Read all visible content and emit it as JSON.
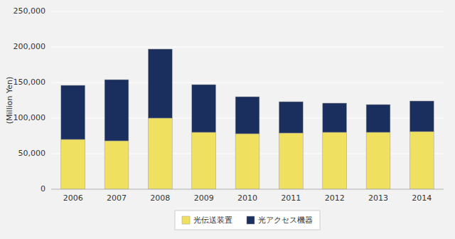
{
  "chart_data": {
    "type": "bar",
    "stacked": true,
    "categories": [
      "2006",
      "2007",
      "2008",
      "2009",
      "2010",
      "2011",
      "2012",
      "2013",
      "2014"
    ],
    "series": [
      {
        "name": "光伝送装置",
        "color": "#F0E060",
        "values": [
          70000,
          68000,
          100000,
          80000,
          78000,
          79000,
          80000,
          80000,
          81000
        ]
      },
      {
        "name": "光アクセス機器",
        "color": "#1B2F5E",
        "values": [
          76000,
          86000,
          97000,
          67000,
          52000,
          44000,
          41000,
          39000,
          43000
        ]
      }
    ],
    "ylabel": "(Million Yen)",
    "ylim": [
      0,
      250000
    ],
    "yticks": [
      0,
      {
        "value": 50000,
        "label": "50,000"
      },
      {
        "value": 100000,
        "label": "100,000"
      },
      {
        "value": 150000,
        "label": "150,000"
      },
      {
        "value": 200000,
        "label": "200,000"
      },
      {
        "value": 250000,
        "label": "250,000"
      }
    ],
    "grid": true,
    "legend": "bottom"
  }
}
